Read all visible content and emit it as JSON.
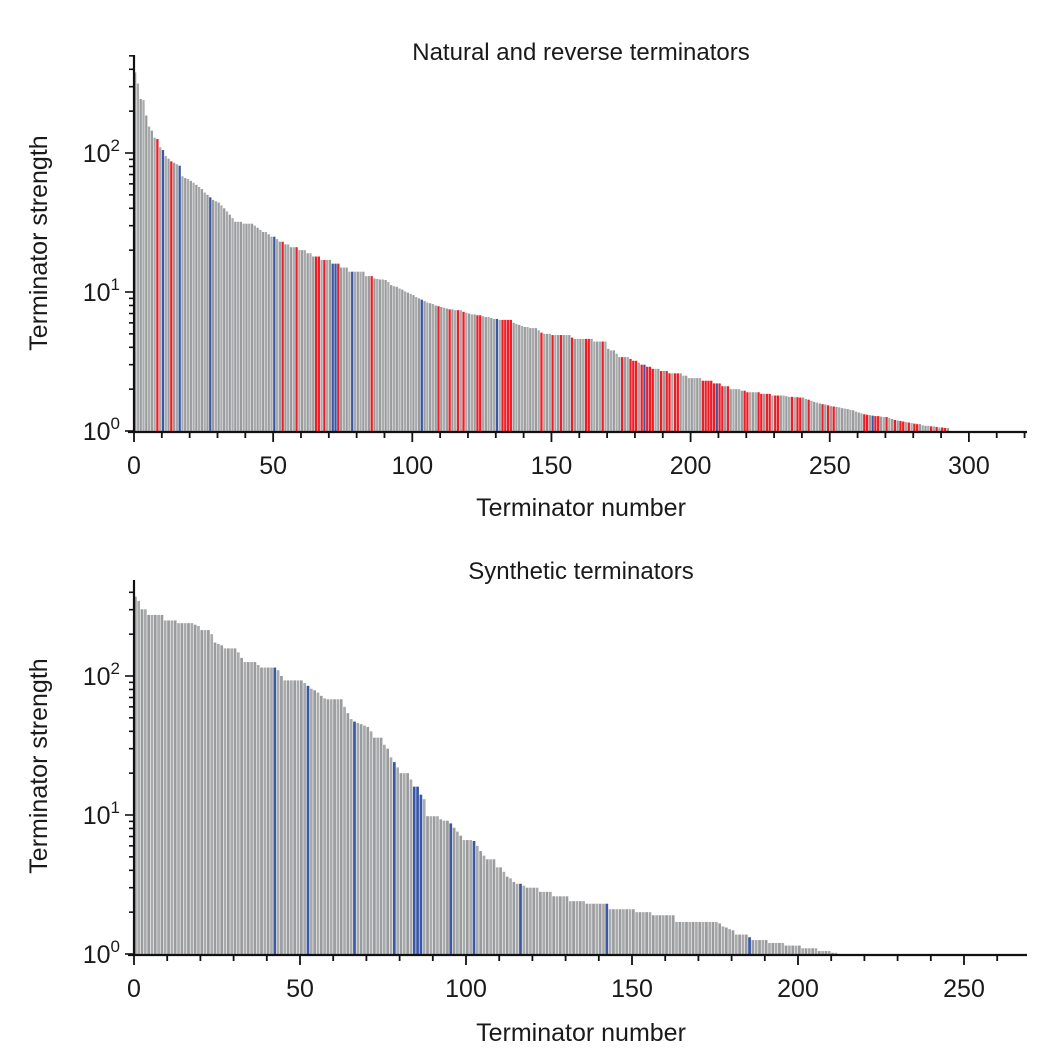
{
  "chart_data": [
    {
      "type": "bar",
      "title": "Natural and reverse terminators",
      "xlabel": "Terminator number",
      "ylabel": "Terminator strength",
      "yscale": "log",
      "ylim": [
        1,
        500
      ],
      "xlim": [
        0,
        320
      ],
      "x_ticks": [
        0,
        50,
        100,
        150,
        200,
        250,
        300
      ],
      "x_tick_labels": [
        "0",
        "50",
        "100",
        "150",
        "200",
        "250",
        "300"
      ],
      "y_ticks": [
        1,
        10,
        100
      ],
      "y_tick_labels": [
        {
          "base": "10",
          "exp": "0"
        },
        {
          "base": "10",
          "exp": "1"
        },
        {
          "base": "10",
          "exp": "2"
        }
      ],
      "grid": false,
      "legend": "none",
      "colors": {
        "default": "#9a9b9d",
        "red": "#ee1c25",
        "blue": "#3a56a6"
      },
      "red_indices": [
        8,
        13,
        53,
        58,
        65,
        66,
        68,
        73,
        85,
        109,
        113,
        116,
        118,
        123,
        124,
        132,
        133,
        134,
        135,
        146,
        150,
        153,
        157,
        162,
        163,
        168,
        175,
        178,
        179,
        180,
        182,
        184,
        185,
        186,
        189,
        191,
        192,
        194,
        195,
        204,
        205,
        206,
        207,
        208,
        210,
        211,
        213,
        219,
        220,
        224,
        225,
        227,
        228,
        230,
        231,
        236,
        238,
        239,
        242,
        247,
        249,
        251,
        262,
        263,
        266,
        267,
        270,
        273,
        275,
        276,
        278,
        280,
        281,
        286,
        288,
        290,
        291
      ],
      "blue_indices": [
        10,
        16,
        27,
        50,
        71,
        72,
        78,
        103,
        130,
        183,
        209,
        265
      ],
      "values": [
        380,
        316,
        245,
        240,
        186,
        155,
        145,
        129,
        126,
        110,
        105,
        95,
        91,
        87,
        85,
        83,
        81,
        68,
        66,
        65,
        63,
        61,
        59,
        57,
        55,
        52,
        50,
        48,
        46,
        45,
        44,
        42,
        40,
        38,
        36,
        34,
        32,
        32,
        32,
        31,
        31,
        31,
        31,
        30,
        29,
        28,
        27,
        27,
        26,
        25,
        25,
        24,
        23,
        23,
        22,
        22,
        21,
        21,
        21,
        20,
        20,
        20,
        19,
        19,
        18,
        18,
        18,
        17,
        17,
        17,
        17,
        16,
        16,
        16,
        15,
        15,
        15,
        14,
        14,
        14,
        14,
        14,
        14,
        13,
        13,
        13,
        12.5,
        12.4,
        12.3,
        12.3,
        12.2,
        11.8,
        11.2,
        11.0,
        10.9,
        10.6,
        10.4,
        10.1,
        9.9,
        9.7,
        9.5,
        9.2,
        9.0,
        8.8,
        8.6,
        8.4,
        8.3,
        8.2,
        8.0,
        7.9,
        7.8,
        7.7,
        7.6,
        7.5,
        7.5,
        7.4,
        7.4,
        7.4,
        7.2,
        7.1,
        7.0,
        6.9,
        6.9,
        6.8,
        6.8,
        6.7,
        6.6,
        6.6,
        6.5,
        6.4,
        6.4,
        6.3,
        6.3,
        6.3,
        6.3,
        6.3,
        6.0,
        5.9,
        5.8,
        5.7,
        5.6,
        5.6,
        5.5,
        5.5,
        5.5,
        5.3,
        5.1,
        5.0,
        5.0,
        5.0,
        4.9,
        4.9,
        4.9,
        4.9,
        4.9,
        4.9,
        4.9,
        4.7,
        4.6,
        4.6,
        4.6,
        4.6,
        4.6,
        4.6,
        4.6,
        4.4,
        4.4,
        4.4,
        4.4,
        4.4,
        3.9,
        3.8,
        3.8,
        3.6,
        3.4,
        3.4,
        3.4,
        3.4,
        3.3,
        3.2,
        3.2,
        3.1,
        3.0,
        3.0,
        2.9,
        2.9,
        2.8,
        2.8,
        2.8,
        2.7,
        2.7,
        2.7,
        2.6,
        2.6,
        2.6,
        2.6,
        2.6,
        2.5,
        2.5,
        2.4,
        2.4,
        2.4,
        2.4,
        2.4,
        2.3,
        2.3,
        2.3,
        2.3,
        2.2,
        2.2,
        2.2,
        2.1,
        2.1,
        2.1,
        2.0,
        2.0,
        2.0,
        2.0,
        1.95,
        1.95,
        1.9,
        1.9,
        1.9,
        1.9,
        1.9,
        1.85,
        1.85,
        1.85,
        1.85,
        1.8,
        1.8,
        1.8,
        1.8,
        1.8,
        1.78,
        1.76,
        1.76,
        1.75,
        1.75,
        1.74,
        1.74,
        1.7,
        1.68,
        1.65,
        1.62,
        1.6,
        1.58,
        1.56,
        1.55,
        1.53,
        1.51,
        1.5,
        1.49,
        1.48,
        1.46,
        1.45,
        1.44,
        1.42,
        1.41,
        1.38,
        1.36,
        1.34,
        1.32,
        1.31,
        1.3,
        1.29,
        1.28,
        1.28,
        1.27,
        1.26,
        1.26,
        1.24,
        1.22,
        1.2,
        1.19,
        1.18,
        1.17,
        1.16,
        1.15,
        1.14,
        1.13,
        1.12,
        1.12,
        1.1,
        1.09,
        1.09,
        1.08,
        1.08,
        1.07,
        1.06,
        1.06,
        1.05,
        1.05
      ]
    },
    {
      "type": "bar",
      "title": "Synthetic terminators",
      "xlabel": "Terminator number",
      "ylabel": "Terminator strength",
      "yscale": "log",
      "ylim": [
        1,
        500
      ],
      "xlim": [
        0,
        268
      ],
      "x_ticks": [
        0,
        50,
        100,
        150,
        200,
        250
      ],
      "x_tick_labels": [
        "0",
        "50",
        "100",
        "150",
        "200",
        "250"
      ],
      "y_ticks": [
        1,
        10,
        100
      ],
      "y_tick_labels": [
        {
          "base": "10",
          "exp": "0"
        },
        {
          "base": "10",
          "exp": "1"
        },
        {
          "base": "10",
          "exp": "2"
        }
      ],
      "grid": false,
      "legend": "none",
      "colors": {
        "default": "#9a9b9d",
        "blue": "#3a56a6"
      },
      "red_indices": [],
      "blue_indices": [
        42,
        52,
        66,
        78,
        84,
        85,
        86,
        95,
        102,
        116,
        142,
        185
      ],
      "values": [
        372,
        347,
        302,
        302,
        275,
        275,
        275,
        275,
        275,
        251,
        251,
        251,
        251,
        240,
        240,
        240,
        240,
        240,
        234,
        229,
        214,
        214,
        214,
        200,
        174,
        170,
        166,
        158,
        158,
        158,
        158,
        148,
        135,
        126,
        126,
        126,
        126,
        120,
        115,
        115,
        115,
        115,
        115,
        110,
        100,
        93,
        93,
        93,
        93,
        93,
        93,
        89,
        85,
        81,
        79,
        76,
        72,
        69,
        68,
        68,
        68,
        68,
        68,
        60,
        54,
        49,
        47,
        46,
        45,
        44,
        43,
        40,
        36,
        36,
        36,
        32,
        30,
        26,
        24,
        22,
        20,
        20,
        20,
        18,
        16,
        16,
        14,
        13,
        9.8,
        9.8,
        9.8,
        9.8,
        9.3,
        9.1,
        9.1,
        8.7,
        8.1,
        7.6,
        7.1,
        6.6,
        6.6,
        6.6,
        6.5,
        6.0,
        5.5,
        5.1,
        4.8,
        4.8,
        4.8,
        4.2,
        4.2,
        3.9,
        3.6,
        3.5,
        3.3,
        3.2,
        3.2,
        3.1,
        3.0,
        3.0,
        3.0,
        3.0,
        2.8,
        2.8,
        2.8,
        2.8,
        2.6,
        2.6,
        2.6,
        2.6,
        2.6,
        2.4,
        2.4,
        2.4,
        2.4,
        2.4,
        2.3,
        2.3,
        2.3,
        2.3,
        2.3,
        2.3,
        2.3,
        2.1,
        2.1,
        2.1,
        2.1,
        2.1,
        2.1,
        2.1,
        2.1,
        2.0,
        2.0,
        2.0,
        2.0,
        2.0,
        1.9,
        1.9,
        1.9,
        1.9,
        1.9,
        1.9,
        1.9,
        1.7,
        1.7,
        1.7,
        1.7,
        1.7,
        1.7,
        1.7,
        1.7,
        1.7,
        1.7,
        1.7,
        1.7,
        1.7,
        1.66,
        1.58,
        1.55,
        1.51,
        1.48,
        1.38,
        1.38,
        1.38,
        1.38,
        1.32,
        1.26,
        1.26,
        1.26,
        1.26,
        1.26,
        1.2,
        1.2,
        1.2,
        1.2,
        1.2,
        1.15,
        1.15,
        1.15,
        1.15,
        1.15,
        1.1,
        1.1,
        1.1,
        1.1,
        1.1,
        1.05,
        1.05,
        1.05,
        1.05,
        1.02,
        1.02
      ]
    }
  ]
}
